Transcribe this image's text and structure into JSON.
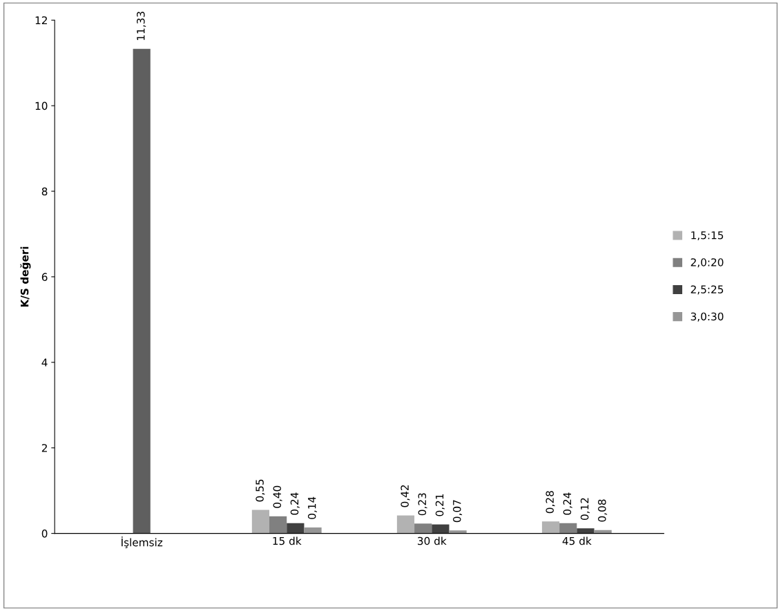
{
  "chart_data": {
    "type": "bar",
    "ylabel": "K/S değeri",
    "categories": [
      "İşlemsiz",
      "15 dk",
      "30 dk",
      "45 dk"
    ],
    "series": [
      {
        "color": "#5f5f5f",
        "values": [
          11.33,
          null,
          null,
          null
        ],
        "value_labels": [
          "11,33",
          null,
          null,
          null
        ]
      },
      {
        "name": "1,5:15",
        "color": "#b2b2b2",
        "values": [
          null,
          0.55,
          0.42,
          0.28
        ],
        "value_labels": [
          null,
          "0,55",
          "0,42",
          "0,28"
        ]
      },
      {
        "name": "2,0:20",
        "color": "#808080",
        "values": [
          null,
          0.4,
          0.23,
          0.24
        ],
        "value_labels": [
          null,
          "0,40",
          "0,23",
          "0,24"
        ]
      },
      {
        "name": "2,5:25",
        "color": "#404040",
        "values": [
          null,
          0.24,
          0.21,
          0.12
        ],
        "value_labels": [
          null,
          "0,24",
          "0,21",
          "0,12"
        ]
      },
      {
        "name": "3,0:30",
        "color": "#969696",
        "values": [
          null,
          0.14,
          0.07,
          0.08
        ],
        "value_labels": [
          null,
          "0,14",
          "0,07",
          "0,08"
        ]
      }
    ],
    "ylim": [
      0,
      12
    ],
    "yticks": [
      0,
      2,
      4,
      6,
      8,
      10,
      12
    ],
    "grid": false,
    "legend": "right"
  }
}
